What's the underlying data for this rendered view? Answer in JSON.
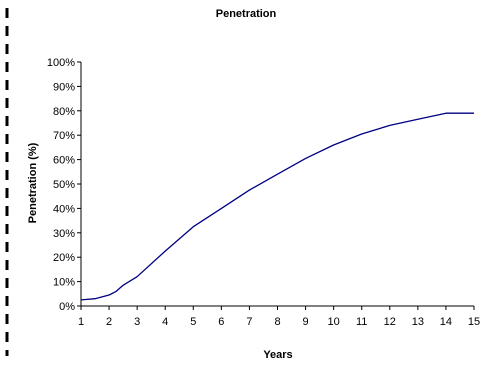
{
  "chart_data": {
    "type": "line",
    "title": "Penetration",
    "xlabel": "Years",
    "ylabel": "Penetration (%)",
    "xlim": [
      1,
      15
    ],
    "ylim": [
      0,
      100
    ],
    "x_ticks": [
      "1",
      "2",
      "3",
      "4",
      "5",
      "6",
      "7",
      "8",
      "9",
      "10",
      "11",
      "12",
      "13",
      "14",
      "15"
    ],
    "y_ticks": [
      "0%",
      "10%",
      "20%",
      "30%",
      "40%",
      "50%",
      "60%",
      "70%",
      "80%",
      "90%",
      "100%"
    ],
    "grid": false,
    "legend": "none",
    "series": [
      {
        "color": "#000080",
        "x": [
          1,
          1.5,
          2,
          2.25,
          2.5,
          3,
          4,
          5,
          6,
          7,
          8,
          9,
          10,
          11,
          12,
          13,
          14,
          15
        ],
        "y": [
          2.5,
          3,
          4.5,
          6,
          8.5,
          12,
          22.5,
          32.5,
          40,
          47.5,
          54,
          60.5,
          66,
          70.5,
          74,
          76.5,
          79,
          79
        ]
      }
    ]
  }
}
